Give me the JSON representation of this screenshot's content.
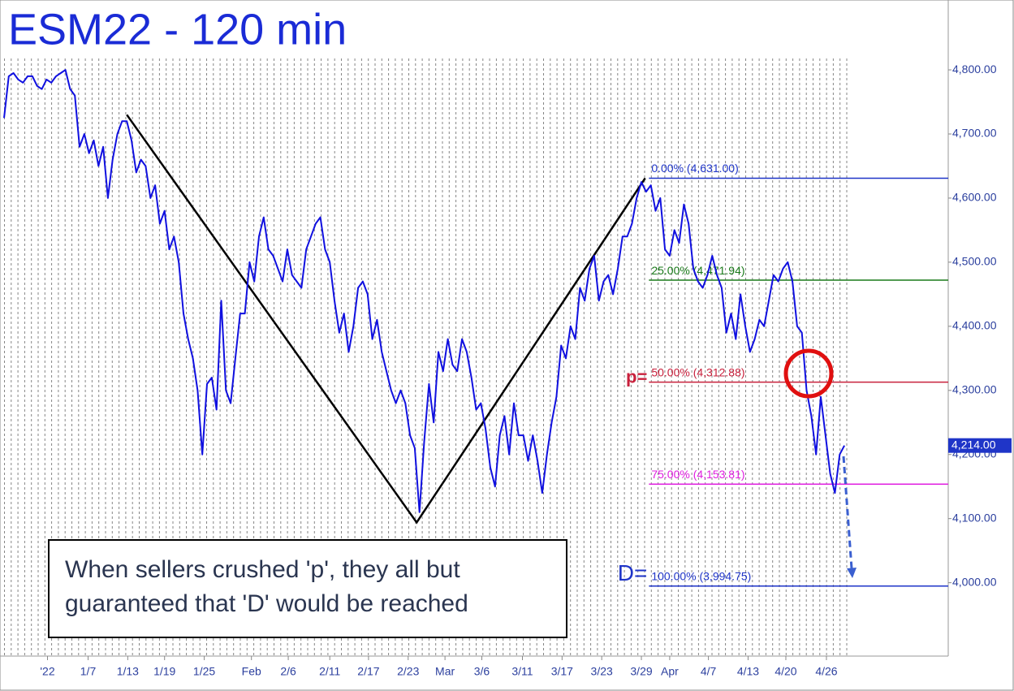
{
  "chart_data": {
    "type": "line",
    "title": "ESM22 - 120 min",
    "color": "#1010e0",
    "xlim": [
      0,
      100
    ],
    "ylim": [
      3883,
      4909
    ],
    "xticks": [
      {
        "value": 4.6,
        "label": "'22"
      },
      {
        "value": 8.9,
        "label": "1/7"
      },
      {
        "value": 13.1,
        "label": "1/13"
      },
      {
        "value": 17.0,
        "label": "1/19"
      },
      {
        "value": 21.2,
        "label": "1/25"
      },
      {
        "value": 26.2,
        "label": "Feb"
      },
      {
        "value": 30.1,
        "label": "2/6"
      },
      {
        "value": 34.5,
        "label": "2/11"
      },
      {
        "value": 38.6,
        "label": "2/17"
      },
      {
        "value": 42.8,
        "label": "2/23"
      },
      {
        "value": 46.7,
        "label": "Mar"
      },
      {
        "value": 50.6,
        "label": "3/6"
      },
      {
        "value": 54.9,
        "label": "3/11"
      },
      {
        "value": 59.1,
        "label": "3/17"
      },
      {
        "value": 63.3,
        "label": "3/23"
      },
      {
        "value": 67.5,
        "label": "3/29"
      },
      {
        "value": 70.5,
        "label": "Apr"
      },
      {
        "value": 74.6,
        "label": "4/7"
      },
      {
        "value": 78.8,
        "label": "4/13"
      },
      {
        "value": 82.8,
        "label": "4/20"
      },
      {
        "value": 87.1,
        "label": "4/26"
      }
    ],
    "yticks": [
      {
        "value": 4000,
        "label": "4,000.00"
      },
      {
        "value": 4100,
        "label": "4,100.00"
      },
      {
        "value": 4200,
        "label": "4,200.00"
      },
      {
        "value": 4300,
        "label": "4,300.00"
      },
      {
        "value": 4400,
        "label": "4,400.00"
      },
      {
        "value": 4500,
        "label": "4,500.00"
      },
      {
        "value": 4600,
        "label": "4,600.00"
      },
      {
        "value": 4700,
        "label": "4,700.00"
      },
      {
        "value": 4800,
        "label": "4,800.00"
      }
    ],
    "x": [
      0,
      0.5,
      1,
      1.5,
      2,
      2.5,
      3,
      3.5,
      4,
      4.5,
      5,
      5.5,
      6,
      6.5,
      7,
      7.5,
      8,
      8.5,
      9,
      9.5,
      10,
      10.5,
      11,
      11.5,
      12,
      12.5,
      13,
      13.5,
      14,
      14.5,
      15,
      15.5,
      16,
      16.5,
      17,
      17.5,
      18,
      18.5,
      19,
      19.5,
      20,
      20.5,
      21,
      21.5,
      22,
      22.5,
      23,
      23.5,
      24,
      24.5,
      25,
      25.5,
      26,
      26.5,
      27,
      27.5,
      28,
      28.5,
      29,
      29.5,
      30,
      30.5,
      31,
      31.5,
      32,
      32.5,
      33,
      33.5,
      34,
      34.5,
      35,
      35.5,
      36,
      36.5,
      37,
      37.5,
      38,
      38.5,
      39,
      39.5,
      40,
      40.5,
      41,
      41.5,
      42,
      42.5,
      43,
      43.5,
      44,
      44.5,
      45,
      45.5,
      46,
      46.5,
      47,
      47.5,
      48,
      48.5,
      49,
      49.5,
      50,
      50.5,
      51,
      51.5,
      52,
      52.5,
      53,
      53.5,
      54,
      54.5,
      55,
      55.5,
      56,
      56.5,
      57,
      57.5,
      58,
      58.5,
      59,
      59.5,
      60,
      60.5,
      61,
      61.5,
      62,
      62.5,
      63,
      63.5,
      64,
      64.5,
      65,
      65.5,
      66,
      66.5,
      67,
      67.5,
      68,
      68.5,
      69,
      69.5,
      70,
      70.5,
      71,
      71.5,
      72,
      72.5,
      73,
      73.5,
      74,
      74.5,
      75,
      75.5,
      76,
      76.5,
      77,
      77.5,
      78,
      78.5,
      79,
      79.5,
      80,
      80.5,
      81,
      81.5,
      82,
      82.5,
      83,
      83.5,
      84,
      84.5,
      85,
      85.5,
      86,
      86.5,
      87,
      87.5,
      88,
      88.5,
      89
    ],
    "values": [
      4725,
      4790,
      4795,
      4785,
      4780,
      4790,
      4790,
      4775,
      4770,
      4785,
      4780,
      4790,
      4795,
      4800,
      4770,
      4760,
      4680,
      4700,
      4670,
      4690,
      4650,
      4680,
      4600,
      4660,
      4700,
      4720,
      4720,
      4690,
      4640,
      4660,
      4650,
      4600,
      4620,
      4560,
      4580,
      4520,
      4540,
      4500,
      4420,
      4380,
      4350,
      4300,
      4200,
      4310,
      4320,
      4270,
      4440,
      4300,
      4280,
      4350,
      4420,
      4420,
      4500,
      4470,
      4540,
      4570,
      4520,
      4510,
      4490,
      4470,
      4520,
      4480,
      4470,
      4460,
      4520,
      4540,
      4560,
      4570,
      4520,
      4500,
      4440,
      4390,
      4420,
      4360,
      4400,
      4460,
      4470,
      4450,
      4380,
      4410,
      4360,
      4330,
      4300,
      4280,
      4300,
      4280,
      4230,
      4210,
      4110,
      4220,
      4310,
      4250,
      4360,
      4330,
      4380,
      4340,
      4330,
      4380,
      4360,
      4320,
      4270,
      4280,
      4240,
      4180,
      4150,
      4230,
      4260,
      4200,
      4280,
      4230,
      4230,
      4190,
      4230,
      4190,
      4140,
      4200,
      4250,
      4290,
      4370,
      4350,
      4400,
      4380,
      4460,
      4440,
      4490,
      4510,
      4440,
      4470,
      4480,
      4450,
      4490,
      4540,
      4540,
      4560,
      4600,
      4625,
      4610,
      4620,
      4580,
      4600,
      4520,
      4510,
      4550,
      4530,
      4590,
      4560,
      4490,
      4470,
      4460,
      4480,
      4510,
      4480,
      4460,
      4390,
      4420,
      4380,
      4450,
      4400,
      4360,
      4380,
      4410,
      4400,
      4440,
      4480,
      4470,
      4490,
      4500,
      4470,
      4400,
      4390,
      4300,
      4260,
      4200,
      4290,
      4230,
      4170,
      4140,
      4200,
      4214
    ],
    "pattern": {
      "color": "#000000",
      "x": [
        13.0,
        43.7,
        67.9
      ],
      "values": [
        4730,
        4094,
        4631
      ]
    },
    "levels_start": 68.3,
    "levels": [
      {
        "value": 4631,
        "label": "0.00% (4,631.00)",
        "color": "#1f35c8"
      },
      {
        "value": 4471.94,
        "label": "25.00% (4,471.94)",
        "color": "#1a7a1a"
      },
      {
        "value": 4312.88,
        "label": "50.00% (4,312.88)",
        "color": "#c8203c",
        "prefix": "p="
      },
      {
        "value": 4153.81,
        "label": "75.00% (4,153.81)",
        "color": "#e020e0"
      },
      {
        "value": 3994.75,
        "label": "100.00% (3,994.75)",
        "color": "#1f35c8",
        "prefix": "D="
      }
    ],
    "last_price": {
      "value": 4214,
      "label": "4,214.00"
    },
    "annotation": [
      "When sellers crushed 'p', they all but",
      "guaranteed that 'D' would be reached"
    ]
  }
}
